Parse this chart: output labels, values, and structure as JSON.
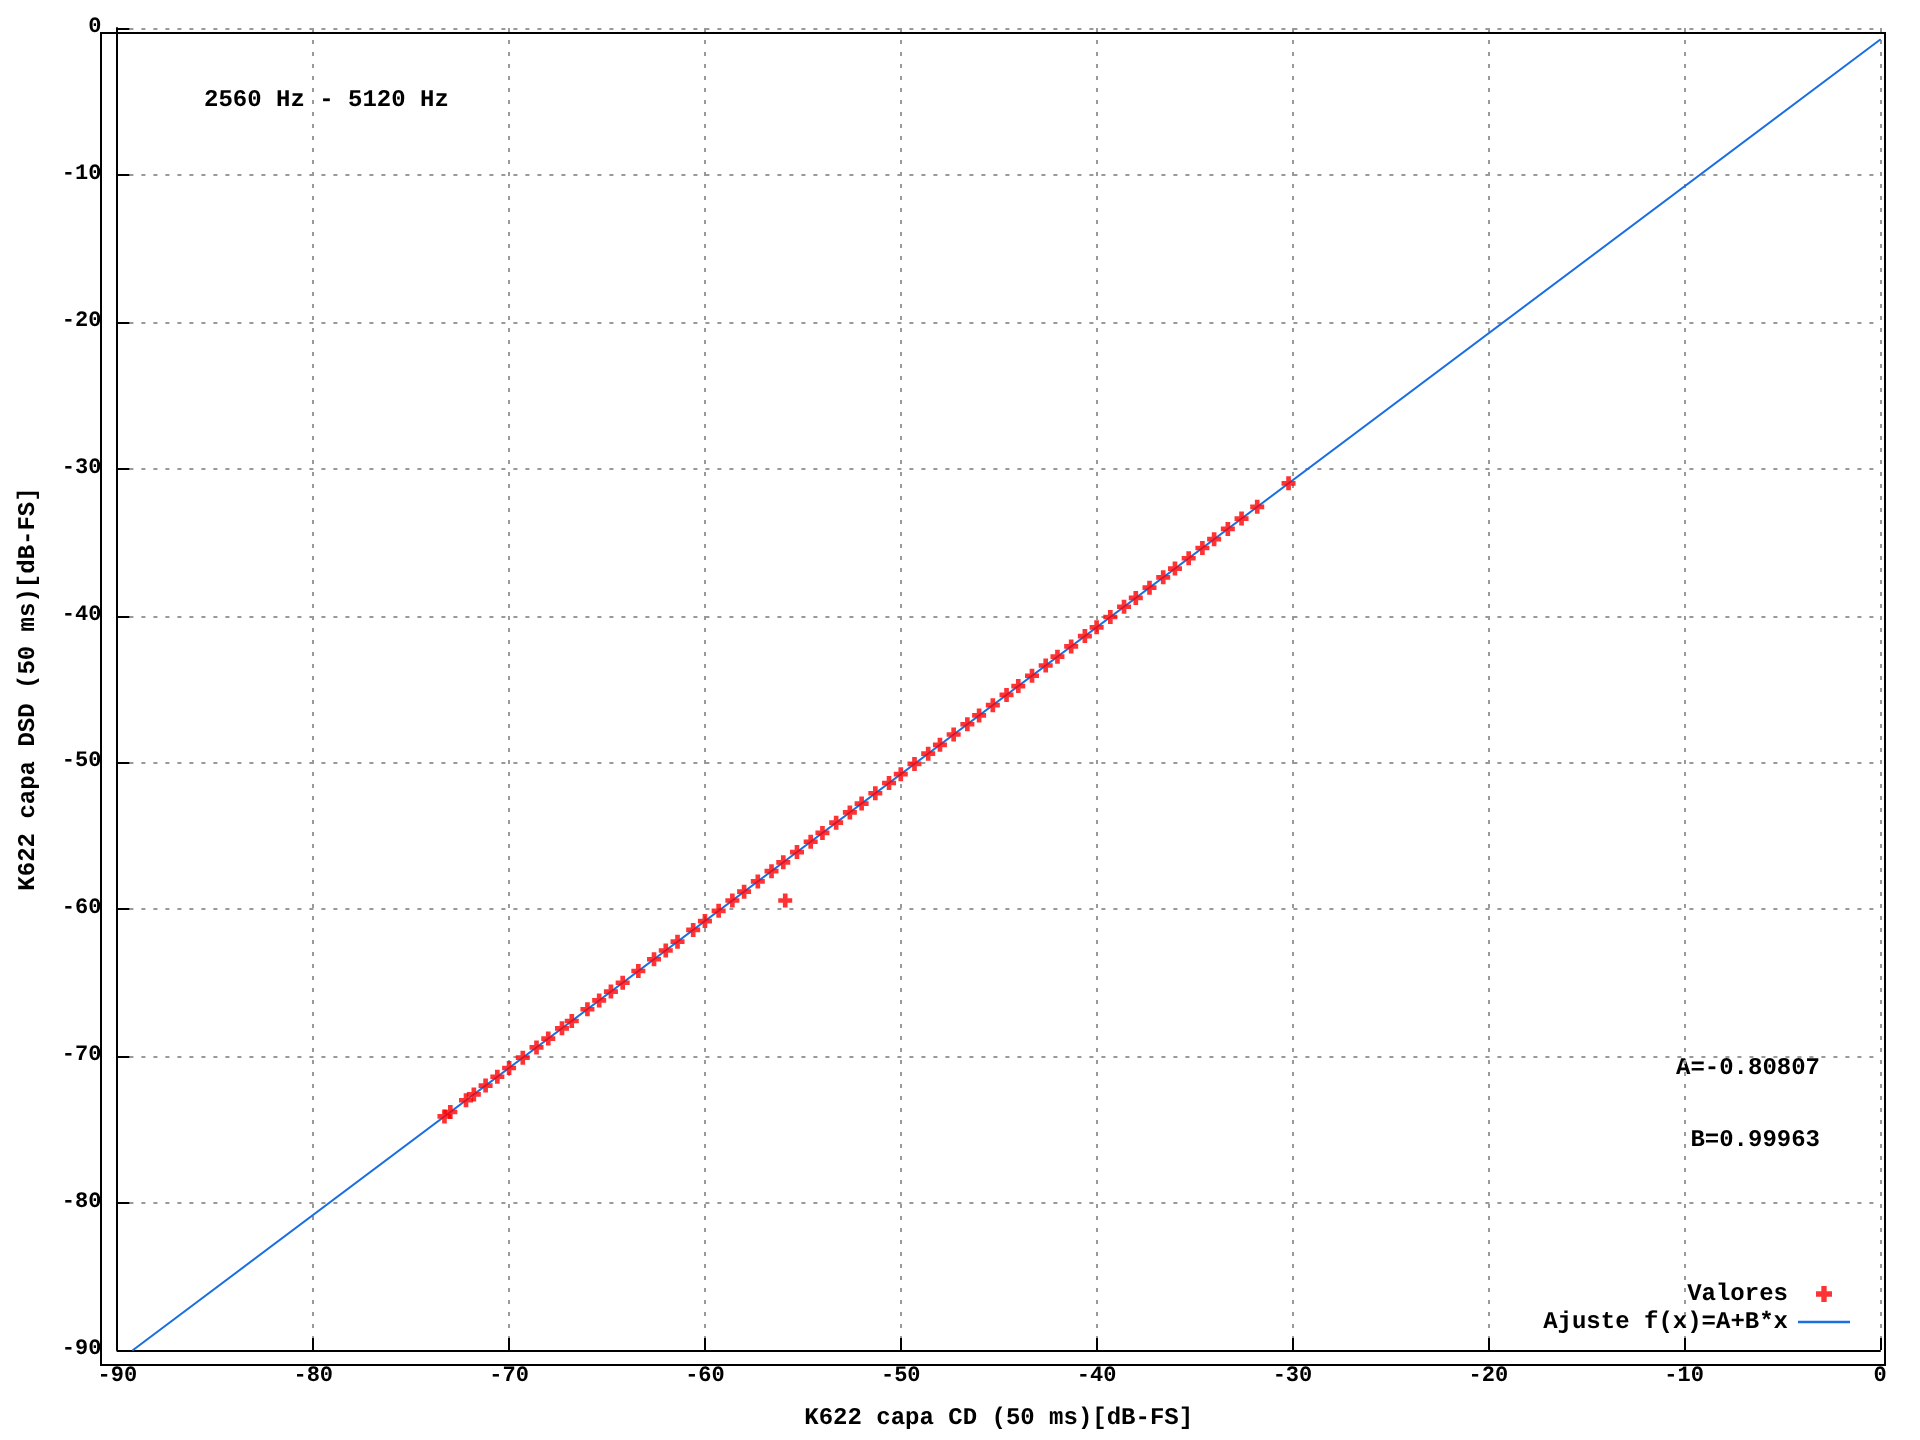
{
  "chart_data": {
    "type": "scatter",
    "xlabel": "K622 capa CD (50 ms)[dB-FS]",
    "ylabel": "K622 capa DSD (50 ms)[dB-FS]",
    "annotations": [
      "2560 Hz - 5120 Hz",
      "A=-0.80807",
      "B=0.99963"
    ],
    "xlim": [
      -90,
      0
    ],
    "ylim": [
      -90,
      0
    ],
    "xticks": [
      -90,
      -80,
      -70,
      -60,
      -50,
      -40,
      -30,
      -20,
      -10,
      0
    ],
    "yticks": [
      -90,
      -80,
      -70,
      -60,
      -50,
      -40,
      -30,
      -20,
      -10,
      0
    ],
    "grid": true,
    "legend": "bottom right",
    "series": [
      {
        "name": "Valores",
        "color": "#ff0000",
        "marker": "cross",
        "x": [
          -73.3,
          -73,
          -72.2,
          -71.8,
          -71.2,
          -70.6,
          -70,
          -69.3,
          -68.6,
          -68,
          -67.3,
          -66.8,
          -66,
          -65.4,
          -64.8,
          -64.2,
          -63.4,
          -62.6,
          -62,
          -61.4,
          -60.6,
          -60,
          -59.3,
          -58.6,
          -58,
          -57.3,
          -56.6,
          -56,
          -55.3,
          -54.6,
          -54,
          -53.3,
          -52.6,
          -52,
          -51.3,
          -50.6,
          -50,
          -49.3,
          -48.6,
          -48,
          -47.3,
          -46.6,
          -46,
          -45.3,
          -44.6,
          -44,
          -43.3,
          -42.6,
          -42,
          -41.3,
          -40.6,
          -40,
          -39.3,
          -38.6,
          -38,
          -37.3,
          -36.6,
          -36,
          -35.3,
          -34.6,
          -34,
          -33.3,
          -32.6,
          -31.8,
          -30.2,
          -55.9
        ],
        "values": [
          -74.1,
          -73.8,
          -73,
          -72.6,
          -72,
          -71.4,
          -70.8,
          -70.1,
          -69.4,
          -68.8,
          -68.1,
          -67.6,
          -66.8,
          -66.2,
          -65.6,
          -65,
          -64.2,
          -63.4,
          -62.8,
          -62.2,
          -61.4,
          -60.8,
          -60.1,
          -59.4,
          -58.8,
          -58.1,
          -57.4,
          -56.8,
          -56.1,
          -55.4,
          -54.8,
          -54.1,
          -53.4,
          -52.8,
          -52.1,
          -51.4,
          -50.8,
          -50.1,
          -49.4,
          -48.8,
          -48.1,
          -47.4,
          -46.8,
          -46.1,
          -45.4,
          -44.8,
          -44.1,
          -43.4,
          -42.8,
          -42.1,
          -41.4,
          -40.8,
          -40.1,
          -39.4,
          -38.8,
          -38.1,
          -37.4,
          -36.8,
          -36.1,
          -35.4,
          -34.8,
          -34.1,
          -33.4,
          -32.6,
          -31,
          -59.4
        ]
      },
      {
        "name": "Ajuste f(x)=A+B*x",
        "type": "line",
        "color": "#1a6fdf",
        "marker": "none",
        "line_style": "solid",
        "x": [
          -89.2,
          0
        ],
        "values": [
          -90,
          -0.8
        ]
      }
    ]
  }
}
